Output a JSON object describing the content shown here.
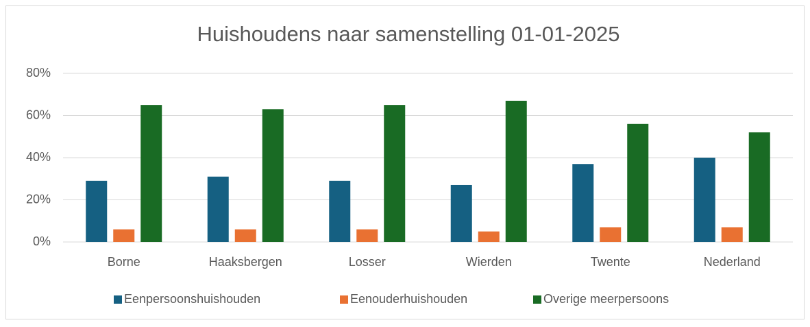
{
  "chart_data": {
    "type": "bar",
    "title": "Huishoudens naar samenstelling 01-01-2025",
    "categories": [
      "Borne",
      "Haaksbergen",
      "Losser",
      "Wierden",
      "Twente",
      "Nederland"
    ],
    "series": [
      {
        "name": "Eenpersoonshuishouden",
        "color": "#156082",
        "values": [
          29,
          31,
          29,
          27,
          37,
          40
        ]
      },
      {
        "name": "Eenouderhuishouden",
        "color": "#e97132",
        "values": [
          6,
          6,
          6,
          5,
          7,
          7
        ]
      },
      {
        "name": "Overige meerpersoons",
        "color": "#196b24",
        "values": [
          65,
          63,
          65,
          67,
          56,
          52
        ]
      }
    ],
    "ylim": [
      0,
      80
    ],
    "yticks": [
      {
        "value": 0,
        "label": "0%"
      },
      {
        "value": 20,
        "label": "20%"
      },
      {
        "value": 40,
        "label": "40%"
      },
      {
        "value": 60,
        "label": "60%"
      },
      {
        "value": 80,
        "label": "80%"
      }
    ],
    "grid": true,
    "legend": "bottom"
  }
}
